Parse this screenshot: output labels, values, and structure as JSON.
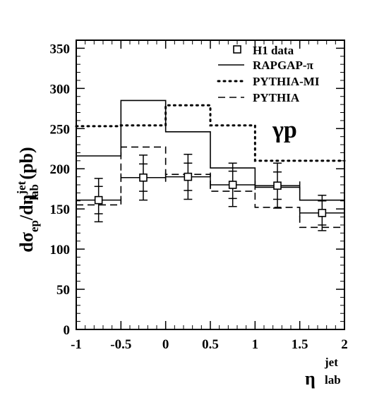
{
  "chart_data": {
    "type": "line",
    "xlim": [
      -1,
      2
    ],
    "ylim": [
      0,
      360
    ],
    "x_ticks": [
      {
        "value": -1,
        "label": "-1"
      },
      {
        "value": -0.5,
        "label": "-0.5"
      },
      {
        "value": 0,
        "label": "0"
      },
      {
        "value": 0.5,
        "label": "0.5"
      },
      {
        "value": 1,
        "label": "1"
      },
      {
        "value": 1.5,
        "label": "1.5"
      },
      {
        "value": 2,
        "label": "2"
      }
    ],
    "y_ticks": [
      {
        "value": 0,
        "label": "0"
      },
      {
        "value": 50,
        "label": "50"
      },
      {
        "value": 100,
        "label": "100"
      },
      {
        "value": 150,
        "label": "150"
      },
      {
        "value": 200,
        "label": "200"
      },
      {
        "value": 250,
        "label": "250"
      },
      {
        "value": 300,
        "label": "300"
      },
      {
        "value": 350,
        "label": "350"
      }
    ],
    "xlabel": {
      "main": "η",
      "sup": "jet",
      "sub": "lab"
    },
    "ylabel": {
      "prefix": "dσ",
      "prefix_sub": "ep",
      "middle": "/dη",
      "sup": "jet",
      "sub": "lab",
      "suffix": " (pb)"
    },
    "annotation": "γp",
    "legend_position": "top-right",
    "bin_edges": [
      -1,
      -0.5,
      0,
      0.5,
      1,
      1.5,
      2
    ],
    "series": [
      {
        "name": "H1 data",
        "style": "points",
        "x": [
          -0.75,
          -0.25,
          0.25,
          0.75,
          1.25,
          1.75
        ],
        "y": [
          161,
          189,
          190,
          180,
          179,
          145
        ],
        "stat_err": [
          17,
          17,
          17,
          17,
          17,
          15
        ],
        "tot_err": [
          27,
          28,
          28,
          27,
          28,
          22
        ]
      },
      {
        "name": "RAPGAP-π",
        "style": "solid",
        "values": [
          216,
          285,
          246,
          201,
          177,
          161
        ]
      },
      {
        "name": "PYTHIA-MI",
        "style": "dotted",
        "values": [
          253,
          254,
          279,
          254,
          210,
          210
        ]
      },
      {
        "name": "PYTHIA",
        "style": "dashed",
        "values": [
          155,
          227,
          193,
          172,
          152,
          127
        ]
      }
    ]
  }
}
